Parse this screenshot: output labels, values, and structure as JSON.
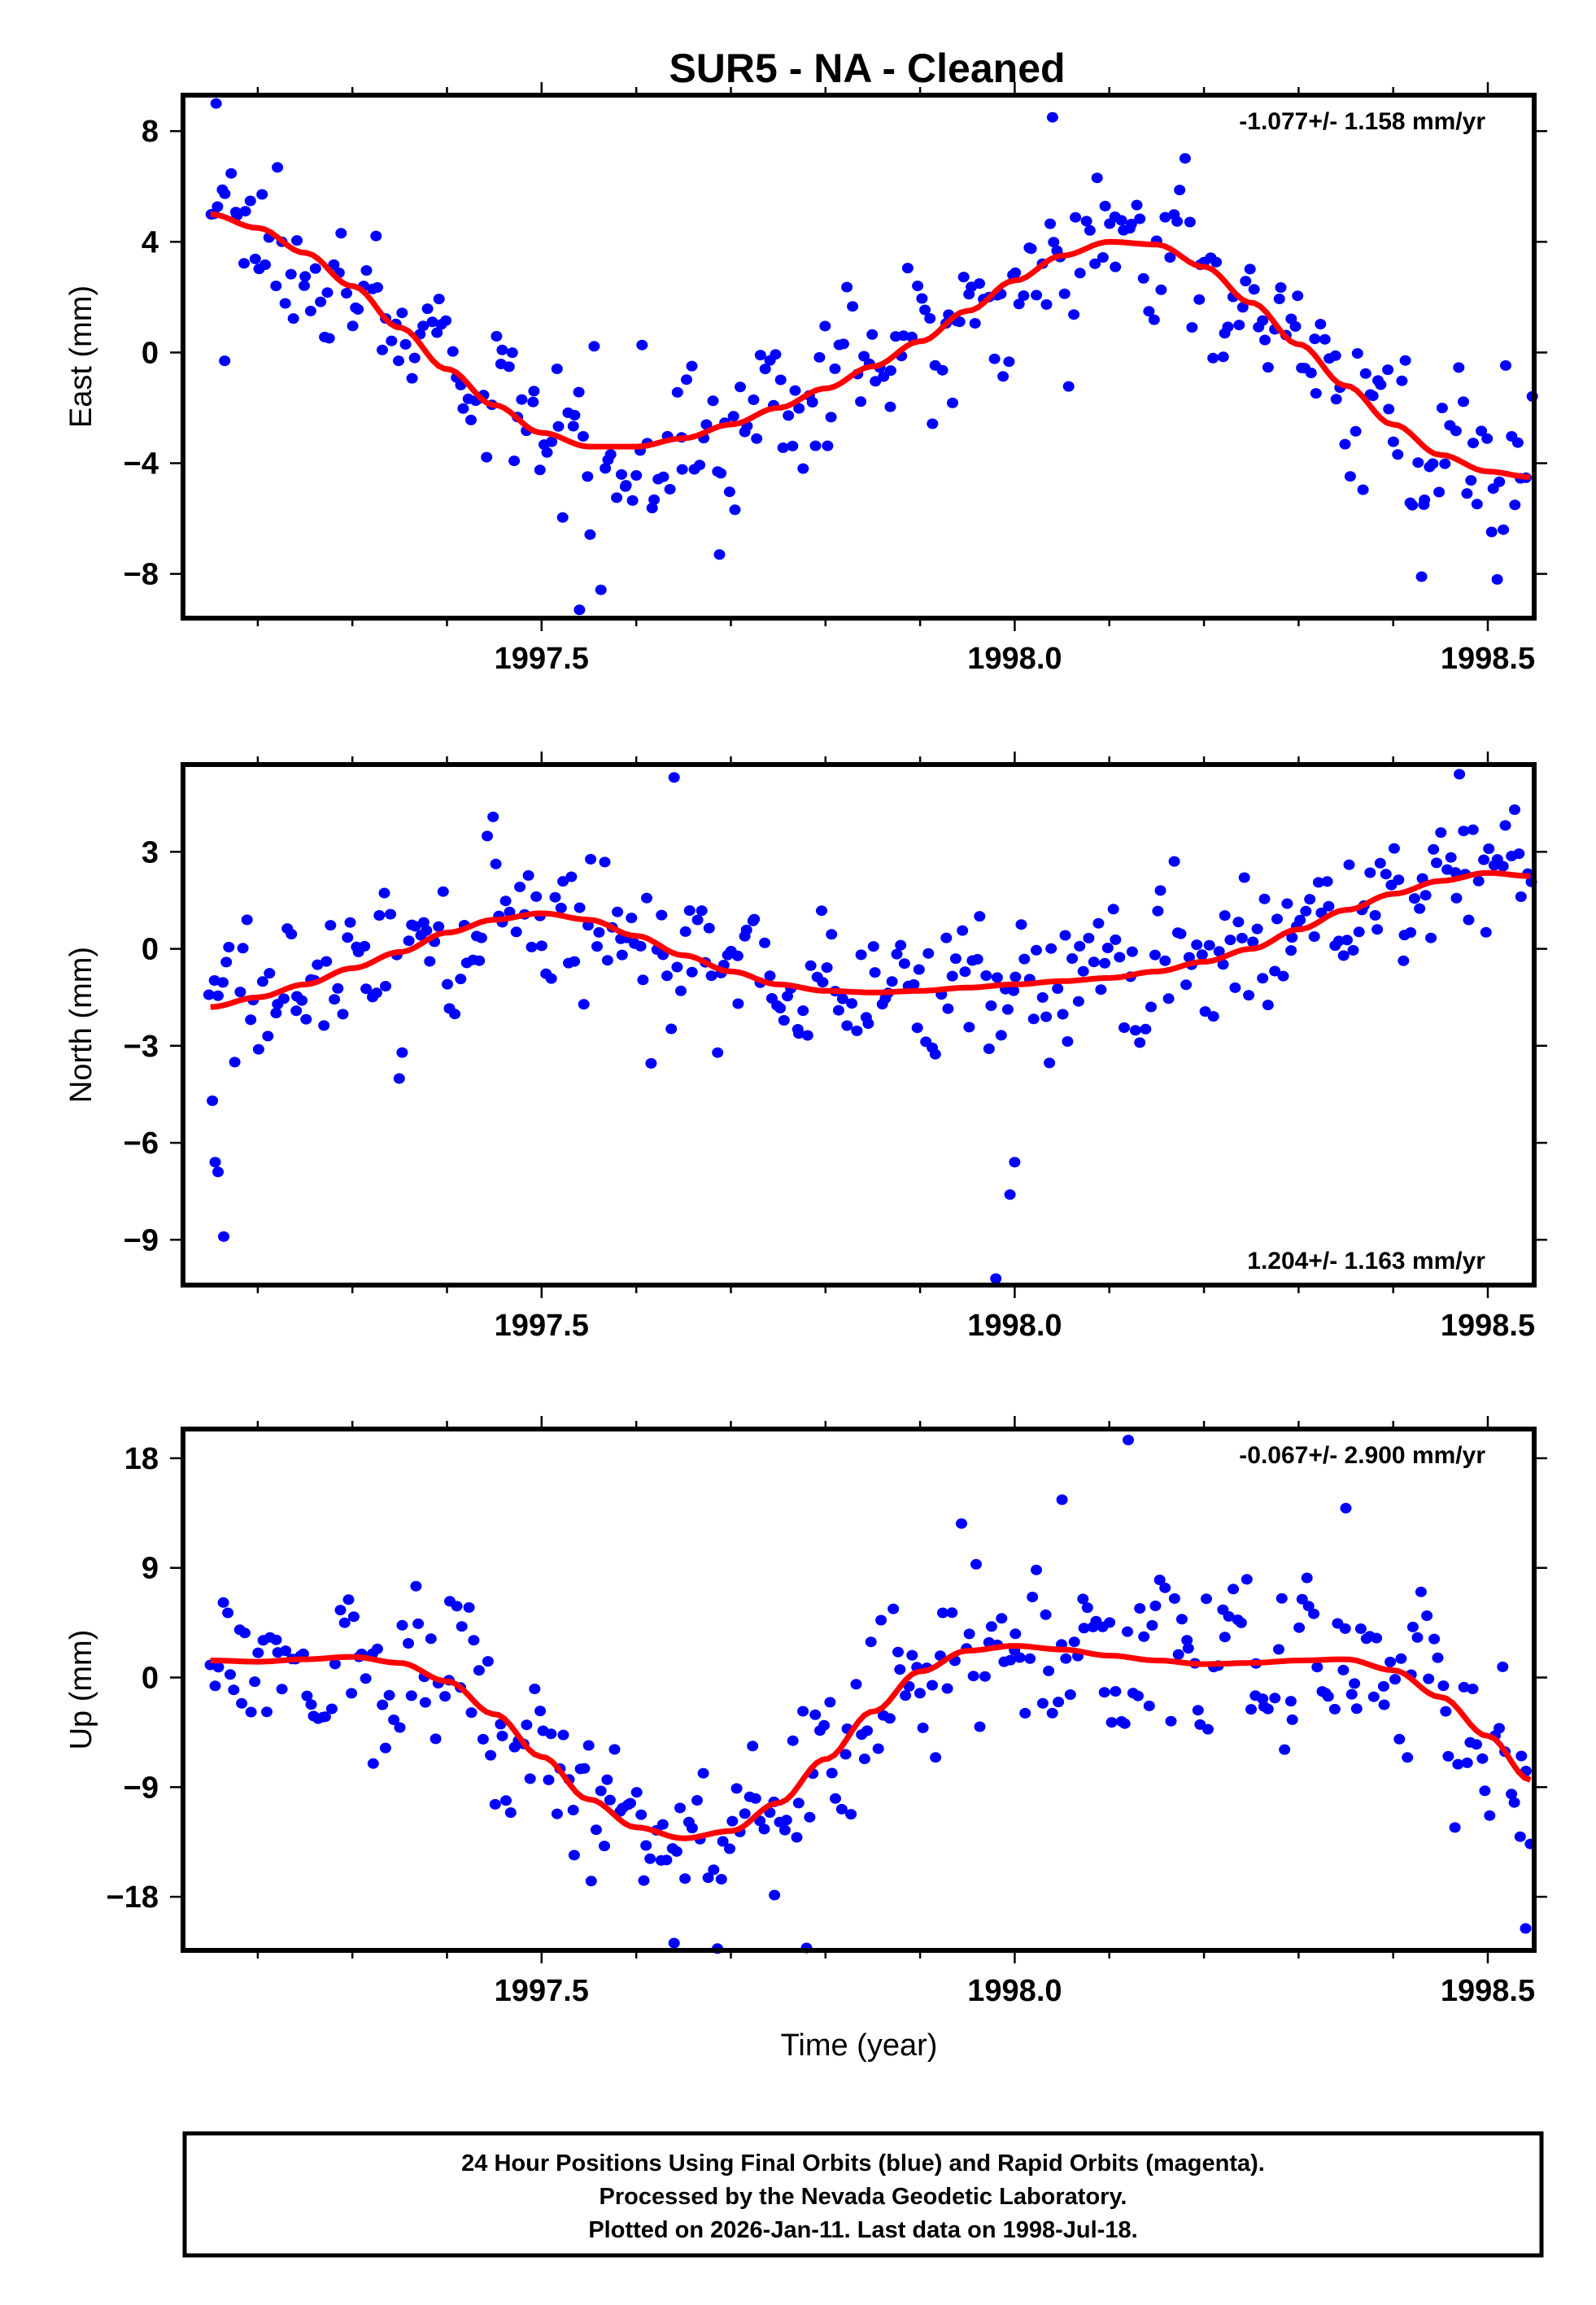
{
  "page": {
    "title": "SUR5  - NA - Cleaned",
    "xlabel": "Time (year)",
    "footer": [
      "24 Hour Positions Using Final Orbits (blue) and Rapid Orbits (magenta).",
      "Processed by the Nevada Geodetic Laboratory.",
      "Plotted on 2026-Jan-11. Last data on 1998-Jul-18."
    ]
  },
  "colors": {
    "points_final": "#0000ff",
    "points_rapid": "#ff00ff",
    "fit_line": "#ff0000",
    "frame": "#000000",
    "background": "#ffffff"
  },
  "chart_data": [
    {
      "type": "scatter",
      "name": "east",
      "title": "SUR5  - NA - Cleaned",
      "ylabel": "East (mm)",
      "xlabel": "",
      "xlim": [
        1997.121,
        1998.549
      ],
      "ylim": [
        -9.6,
        9.3
      ],
      "x_ticks": [
        1997.5,
        1998.0,
        1998.5
      ],
      "x_tick_labels": [
        "1997.5",
        "1998.0",
        "1998.5"
      ],
      "x_minor_step": 0.1,
      "y_ticks": [
        8,
        4,
        0,
        -4,
        -8
      ],
      "y_tick_labels": [
        "8",
        "4",
        "0",
        "−4",
        "−8"
      ],
      "rate_text": "-1.077+/- 1.158 mm/yr",
      "rate_position": "top-right",
      "data_start": 1997.15,
      "data_end": 1998.545,
      "fit_curve": {
        "x": [
          1997.15,
          1997.2,
          1997.25,
          1997.3,
          1997.35,
          1997.4,
          1997.45,
          1997.5,
          1997.55,
          1997.6,
          1997.65,
          1997.7,
          1997.75,
          1997.8,
          1997.85,
          1997.9,
          1997.95,
          1998.0,
          1998.05,
          1998.1,
          1998.15,
          1998.2,
          1998.25,
          1998.3,
          1998.35,
          1998.4,
          1998.45,
          1998.5,
          1998.545
        ],
        "y": [
          5.0,
          4.5,
          3.6,
          2.4,
          0.9,
          -0.6,
          -1.9,
          -2.9,
          -3.4,
          -3.4,
          -3.1,
          -2.6,
          -2.0,
          -1.3,
          -0.5,
          0.4,
          1.5,
          2.6,
          3.5,
          4.0,
          3.9,
          3.1,
          1.8,
          0.3,
          -1.2,
          -2.6,
          -3.7,
          -4.3,
          -4.5
        ]
      },
      "scatter_count": 330,
      "scatter_noise_mm": 1.6,
      "outliers": [
        {
          "x": 1997.156,
          "y": 9.0
        },
        {
          "x": 1997.165,
          "y": -0.3
        },
        {
          "x": 1997.54,
          "y": -9.3
        },
        {
          "x": 1997.688,
          "y": -7.3
        },
        {
          "x": 1998.04,
          "y": 8.5
        },
        {
          "x": 1998.43,
          "y": -8.1
        },
        {
          "x": 1998.51,
          "y": -8.2
        }
      ]
    },
    {
      "type": "scatter",
      "name": "north",
      "ylabel": "North (mm)",
      "xlabel": "",
      "xlim": [
        1997.121,
        1998.549
      ],
      "ylim": [
        -10.4,
        5.7
      ],
      "x_ticks": [
        1997.5,
        1998.0,
        1998.5
      ],
      "x_tick_labels": [
        "1997.5",
        "1998.0",
        "1998.5"
      ],
      "x_minor_step": 0.1,
      "y_ticks": [
        3,
        0,
        -3,
        -6,
        -9
      ],
      "y_tick_labels": [
        "3",
        "0",
        "−3",
        "−6",
        "−9"
      ],
      "rate_text": "1.204+/- 1.163 mm/yr",
      "rate_position": "bottom-right",
      "data_start": 1997.15,
      "data_end": 1998.545,
      "fit_curve": {
        "x": [
          1997.15,
          1997.2,
          1997.25,
          1997.3,
          1997.35,
          1997.4,
          1997.45,
          1997.5,
          1997.55,
          1997.6,
          1997.65,
          1997.7,
          1997.75,
          1997.8,
          1997.85,
          1997.9,
          1997.95,
          1998.0,
          1998.05,
          1998.1,
          1998.15,
          1998.2,
          1998.25,
          1998.3,
          1998.35,
          1998.4,
          1998.45,
          1998.5,
          1998.545
        ],
        "y": [
          -1.8,
          -1.5,
          -1.1,
          -0.6,
          -0.1,
          0.5,
          0.9,
          1.1,
          0.9,
          0.4,
          -0.2,
          -0.7,
          -1.1,
          -1.3,
          -1.35,
          -1.3,
          -1.2,
          -1.1,
          -1.0,
          -0.9,
          -0.7,
          -0.4,
          0.0,
          0.6,
          1.2,
          1.7,
          2.1,
          2.35,
          2.25
        ]
      },
      "scatter_count": 330,
      "scatter_noise_mm": 1.5,
      "outliers": [
        {
          "x": 1997.152,
          "y": -4.7
        },
        {
          "x": 1997.155,
          "y": -6.6
        },
        {
          "x": 1997.158,
          "y": -6.9
        },
        {
          "x": 1997.164,
          "y": -8.9
        },
        {
          "x": 1997.64,
          "y": 5.3
        },
        {
          "x": 1997.98,
          "y": -10.2
        },
        {
          "x": 1997.995,
          "y": -7.6
        },
        {
          "x": 1998.0,
          "y": -6.6
        },
        {
          "x": 1998.47,
          "y": 5.4
        }
      ]
    },
    {
      "type": "scatter",
      "name": "up",
      "ylabel": "Up (mm)",
      "xlabel": "Time (year)",
      "xlim": [
        1997.121,
        1998.549
      ],
      "ylim": [
        -22.4,
        20.4
      ],
      "x_ticks": [
        1997.5,
        1998.0,
        1998.5
      ],
      "x_tick_labels": [
        "1997.5",
        "1998.0",
        "1998.5"
      ],
      "x_minor_step": 0.1,
      "y_ticks": [
        18,
        9,
        0,
        -9,
        -18
      ],
      "y_tick_labels": [
        "18",
        "9",
        "0",
        "−9",
        "−18"
      ],
      "rate_text": "-0.067+/- 2.900 mm/yr",
      "rate_position": "top-right",
      "data_start": 1997.15,
      "data_end": 1998.545,
      "fit_curve": {
        "x": [
          1997.15,
          1997.2,
          1997.25,
          1997.3,
          1997.35,
          1997.4,
          1997.45,
          1997.5,
          1997.55,
          1997.6,
          1997.65,
          1997.7,
          1997.75,
          1997.8,
          1997.85,
          1997.9,
          1997.95,
          1998.0,
          1998.05,
          1998.1,
          1998.15,
          1998.2,
          1998.25,
          1998.3,
          1998.35,
          1998.4,
          1998.45,
          1998.5,
          1998.545
        ],
        "y": [
          1.4,
          1.3,
          1.5,
          1.7,
          1.2,
          -0.3,
          -3.0,
          -6.5,
          -10.0,
          -12.3,
          -13.2,
          -12.6,
          -10.3,
          -6.7,
          -2.8,
          0.5,
          2.2,
          2.6,
          2.3,
          1.8,
          1.4,
          1.1,
          1.2,
          1.4,
          1.5,
          0.6,
          -1.6,
          -4.8,
          -8.4
        ]
      },
      "scatter_count": 330,
      "scatter_noise_mm": 4.2,
      "outliers": [
        {
          "x": 1998.12,
          "y": 19.5
        },
        {
          "x": 1998.05,
          "y": 14.6
        },
        {
          "x": 1998.35,
          "y": 13.9
        },
        {
          "x": 1997.64,
          "y": -21.8
        },
        {
          "x": 1997.78,
          "y": -22.2
        },
        {
          "x": 1998.54,
          "y": -20.6
        }
      ]
    }
  ]
}
